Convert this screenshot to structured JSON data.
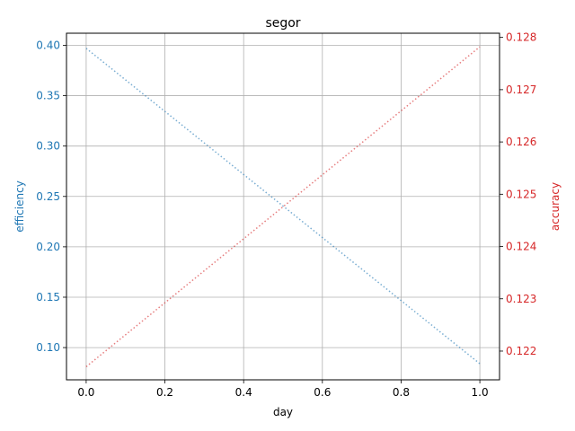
{
  "chart_data": {
    "type": "line",
    "title": "segor",
    "xlabel": "day",
    "ylabel_left": "efficiency",
    "ylabel_right": "accuracy",
    "xlim": [
      -0.05,
      1.05
    ],
    "ylim_left": [
      0.068,
      0.412
    ],
    "ylim_right": [
      0.12145,
      0.12808
    ],
    "grid": true,
    "x_ticks": [
      0.0,
      0.2,
      0.4,
      0.6,
      0.8,
      1.0
    ],
    "x_tick_labels": [
      "0.0",
      "0.2",
      "0.4",
      "0.6",
      "0.8",
      "1.0"
    ],
    "left_ticks": [
      0.1,
      0.15,
      0.2,
      0.25,
      0.3,
      0.35,
      0.4
    ],
    "left_tick_labels": [
      "0.10",
      "0.15",
      "0.20",
      "0.25",
      "0.30",
      "0.35",
      "0.40"
    ],
    "right_ticks": [
      0.122,
      0.123,
      0.124,
      0.125,
      0.126,
      0.127,
      0.128
    ],
    "right_tick_labels": [
      "0.122",
      "0.123",
      "0.124",
      "0.125",
      "0.126",
      "0.127",
      "0.128"
    ],
    "series": [
      {
        "axis": "left",
        "color": "#1f77b4",
        "style": "dotted",
        "x": [
          0.0,
          1.0
        ],
        "values": [
          0.397,
          0.084
        ]
      },
      {
        "axis": "right",
        "color": "#d62728",
        "style": "dotted",
        "x": [
          0.0,
          1.0
        ],
        "values": [
          0.1217,
          0.12782
        ]
      }
    ],
    "left_axis_color": "#1f77b4",
    "right_axis_color": "#d62728"
  }
}
